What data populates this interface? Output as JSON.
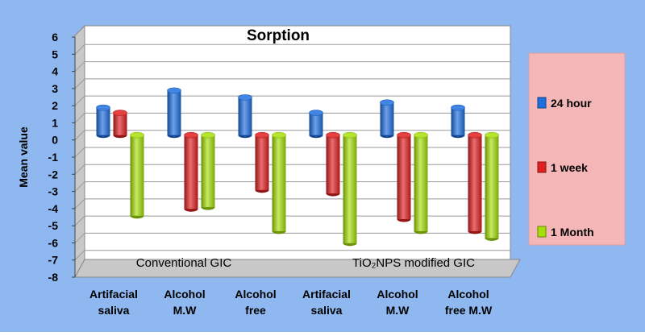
{
  "chart_data": {
    "type": "bar",
    "title": "Sorption",
    "ylabel": "Mean value",
    "xlabel": "",
    "ylim": [
      -8,
      6
    ],
    "yticks": [
      6,
      5,
      4,
      3,
      2,
      1,
      0,
      -1,
      -2,
      -3,
      -4,
      -5,
      -6,
      -7,
      -8
    ],
    "grid": true,
    "legend_position": "right",
    "categories": [
      [
        "Artifacial",
        "saliva"
      ],
      [
        "Alcohol",
        "M.W"
      ],
      [
        "Alcohol",
        "free"
      ],
      [
        "Artifacial",
        "saliva"
      ],
      [
        "Alcohol",
        "M.W"
      ],
      [
        "Alcohol",
        "free M.W"
      ]
    ],
    "groups": [
      {
        "label": "Conventional GIC",
        "categories": [
          0,
          1,
          2
        ]
      },
      {
        "label": "TiO₂NPS modified GIC",
        "categories": [
          3,
          4,
          5
        ]
      }
    ],
    "series": [
      {
        "name": "24 hour",
        "color": "#1f6fe0",
        "values": [
          1.6,
          2.6,
          2.2,
          1.3,
          1.9,
          1.6
        ]
      },
      {
        "name": "1 week",
        "color": "#e02020",
        "values": [
          1.3,
          -4.3,
          -3.2,
          -3.4,
          -4.9,
          -5.6
        ]
      },
      {
        "name": "1 Month",
        "color": "#a6e00a",
        "values": [
          -4.7,
          -4.2,
          -5.6,
          -6.3,
          -5.6,
          -6.0
        ]
      }
    ]
  }
}
